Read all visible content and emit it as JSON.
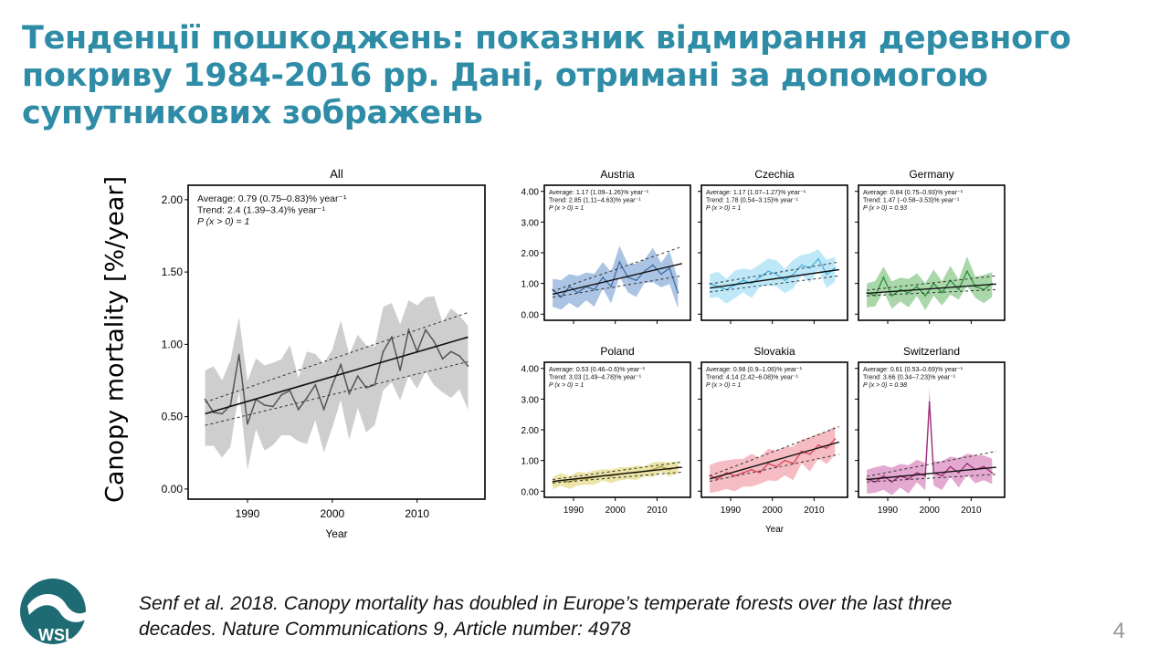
{
  "slide": {
    "title": "Тенденції пошкоджень: показник відмирання деревного покриву 1984-2016 рр. Дані, отримані за допомогою супутникових зображень",
    "ylabel": "Canopy mortality [%/year]",
    "citation_line1": "Senf et al. 2018. Canopy mortality has doubled in Europe’s temperate forests over the last three",
    "citation_line2": "decades. Nature Communications 9, Article number: 4978",
    "slide_number": "4",
    "logo_text": "WSL",
    "title_color": "#2e8ca6"
  },
  "chart_data": [
    {
      "type": "line",
      "title": "All",
      "color": "#555555",
      "band_color": "#bdbdbd",
      "xlabel": "Year",
      "ylabel": "",
      "xlim": [
        1983,
        2018
      ],
      "ylim": [
        -0.07,
        2.1
      ],
      "xticks": [
        1990,
        2000,
        2010
      ],
      "yticks": [
        "0.00",
        "0.50",
        "1.00",
        "1.50",
        "2.00"
      ],
      "annotation": [
        "Average: 0.79 (0.75–0.83)% year⁻¹",
        "Trend: 2.4 (1.39–3.4)% year⁻¹",
        "P (x > 0) = 1"
      ],
      "x": [
        1985,
        1986,
        1987,
        1988,
        1989,
        1990,
        1991,
        1992,
        1993,
        1994,
        1995,
        1996,
        1997,
        1998,
        1999,
        2000,
        2001,
        2002,
        2003,
        2004,
        2005,
        2006,
        2007,
        2008,
        2009,
        2010,
        2011,
        2012,
        2013,
        2014,
        2015,
        2016
      ],
      "values": [
        0.62,
        0.53,
        0.52,
        0.58,
        0.93,
        0.45,
        0.62,
        0.58,
        0.57,
        0.65,
        0.68,
        0.55,
        0.63,
        0.72,
        0.55,
        0.72,
        0.86,
        0.66,
        0.78,
        0.7,
        0.72,
        0.95,
        1.05,
        0.82,
        1.1,
        0.95,
        1.1,
        1.02,
        0.9,
        0.95,
        0.92,
        0.85
      ],
      "band_width": 0.2,
      "trend": {
        "x": [
          1985,
          2016
        ],
        "y": [
          0.52,
          1.05
        ]
      },
      "ci_lower": {
        "x": [
          1985,
          2016
        ],
        "y": [
          0.44,
          0.88
        ]
      },
      "ci_upper": {
        "x": [
          1985,
          2016
        ],
        "y": [
          0.6,
          1.22
        ]
      }
    },
    {
      "type": "line",
      "title": "Austria",
      "color": "#3f6fa8",
      "band_color": "#8fb0d9",
      "xlabel": "",
      "ylabel": "",
      "xlim": [
        1983,
        2018
      ],
      "ylim": [
        -0.2,
        4.2
      ],
      "xticks": [
        1990,
        2000,
        2010
      ],
      "yticks": [
        "0.00",
        "1.00",
        "2.00",
        "3.00",
        "4.00"
      ],
      "annotation": [
        "Average: 1.17 (1.09–1.26)% year⁻¹",
        "Trend: 2.85 (1.11–4.63)% year⁻¹",
        "P (x > 0) = 1"
      ],
      "x": [
        1985,
        1987,
        1989,
        1991,
        1993,
        1995,
        1997,
        1999,
        2001,
        2003,
        2005,
        2007,
        2009,
        2011,
        2013,
        2015
      ],
      "values": [
        0.8,
        0.55,
        0.9,
        0.7,
        0.9,
        0.8,
        1.2,
        0.9,
        1.7,
        1.2,
        1.1,
        1.4,
        1.6,
        1.3,
        1.5,
        0.7
      ],
      "band_width": 0.35,
      "trend": {
        "x": [
          1985,
          2016
        ],
        "y": [
          0.65,
          1.65
        ]
      },
      "ci_lower": {
        "x": [
          1985,
          2016
        ],
        "y": [
          0.55,
          1.25
        ]
      },
      "ci_upper": {
        "x": [
          1985,
          2016
        ],
        "y": [
          0.75,
          2.2
        ]
      }
    },
    {
      "type": "line",
      "title": "Czechia",
      "color": "#4ab4df",
      "band_color": "#a8e0f5",
      "xlabel": "",
      "ylabel": "",
      "xlim": [
        1983,
        2018
      ],
      "ylim": [
        -0.2,
        4.2
      ],
      "xticks": [
        1990,
        2000,
        2010
      ],
      "yticks": [
        "0.00",
        "1.00",
        "2.00",
        "3.00",
        "4.00"
      ],
      "annotation": [
        "Average: 1.17 (1.07–1.27)% year⁻¹",
        "Trend: 1.78 (0.54–3.15)% year⁻¹",
        "P (x > 0) = 1"
      ],
      "x": [
        1985,
        1987,
        1989,
        1991,
        1993,
        1995,
        1997,
        1999,
        2001,
        2003,
        2005,
        2007,
        2009,
        2011,
        2013,
        2015
      ],
      "values": [
        1.0,
        0.9,
        0.8,
        0.95,
        1.1,
        1.0,
        1.2,
        1.4,
        1.3,
        1.1,
        1.3,
        1.6,
        1.5,
        1.8,
        1.3,
        1.5
      ],
      "band_width": 0.3,
      "trend": {
        "x": [
          1985,
          2016
        ],
        "y": [
          0.85,
          1.45
        ]
      },
      "ci_lower": {
        "x": [
          1985,
          2016
        ],
        "y": [
          0.72,
          1.25
        ]
      },
      "ci_upper": {
        "x": [
          1985,
          2016
        ],
        "y": [
          0.98,
          1.7
        ]
      }
    },
    {
      "type": "line",
      "title": "Germany",
      "color": "#2f8f3a",
      "band_color": "#8cc98e",
      "xlabel": "",
      "ylabel": "",
      "xlim": [
        1983,
        2018
      ],
      "ylim": [
        -0.2,
        4.2
      ],
      "xticks": [
        1990,
        2000,
        2010
      ],
      "yticks": [
        "0.00",
        "1.00",
        "2.00",
        "3.00",
        "4.00"
      ],
      "annotation": [
        "Average: 0.84 (0.75–0.93)% year⁻¹",
        "Trend: 1.47 (−0.58–3.53)% year⁻¹",
        "P (x > 0) = 0.93"
      ],
      "x": [
        1985,
        1987,
        1989,
        1991,
        1993,
        1995,
        1997,
        1999,
        2001,
        2003,
        2005,
        2007,
        2009,
        2011,
        2013,
        2015
      ],
      "values": [
        0.7,
        0.6,
        1.2,
        0.6,
        0.8,
        0.7,
        0.9,
        0.6,
        1.0,
        0.7,
        1.1,
        0.8,
        1.4,
        0.9,
        0.8,
        1.0
      ],
      "band_width": 0.3,
      "trend": {
        "x": [
          1985,
          2016
        ],
        "y": [
          0.68,
          0.98
        ]
      },
      "ci_lower": {
        "x": [
          1985,
          2016
        ],
        "y": [
          0.6,
          0.8
        ]
      },
      "ci_upper": {
        "x": [
          1985,
          2016
        ],
        "y": [
          0.78,
          1.25
        ]
      }
    },
    {
      "type": "line",
      "title": "Poland",
      "color": "#a89a3a",
      "band_color": "#e6dc8a",
      "xlabel": "",
      "ylabel": "",
      "xlim": [
        1983,
        2018
      ],
      "ylim": [
        -0.2,
        4.2
      ],
      "xticks": [
        1990,
        2000,
        2010
      ],
      "yticks": [
        "0.00",
        "1.00",
        "2.00",
        "3.00",
        "4.00"
      ],
      "annotation": [
        "Average: 0.53 (0.46–0.6)% year⁻¹",
        "Trend: 3.03 (1.49–4.78)% year⁻¹",
        "P (x > 0) = 1"
      ],
      "x": [
        1985,
        1987,
        1989,
        1991,
        1993,
        1995,
        1997,
        1999,
        2001,
        2003,
        2005,
        2007,
        2009,
        2011,
        2013,
        2015
      ],
      "values": [
        0.3,
        0.35,
        0.3,
        0.4,
        0.4,
        0.45,
        0.5,
        0.5,
        0.55,
        0.6,
        0.6,
        0.65,
        0.7,
        0.8,
        0.7,
        0.8
      ],
      "band_width": 0.15,
      "trend": {
        "x": [
          1985,
          2016
        ],
        "y": [
          0.32,
          0.78
        ]
      },
      "ci_lower": {
        "x": [
          1985,
          2016
        ],
        "y": [
          0.27,
          0.62
        ]
      },
      "ci_upper": {
        "x": [
          1985,
          2016
        ],
        "y": [
          0.38,
          0.95
        ]
      }
    },
    {
      "type": "line",
      "title": "Slovakia",
      "color": "#d9475a",
      "band_color": "#f2a6b0",
      "xlabel": "Year",
      "ylabel": "",
      "xlim": [
        1983,
        2018
      ],
      "ylim": [
        -0.2,
        4.2
      ],
      "xticks": [
        1990,
        2000,
        2010
      ],
      "yticks": [
        "0.00",
        "1.00",
        "2.00",
        "3.00",
        "4.00"
      ],
      "annotation": [
        "Average: 0.98 (0.9–1.06)% year⁻¹",
        "Trend: 4.14 (2.42–6.08)% year⁻¹",
        "P (x > 0) = 1"
      ],
      "x": [
        1985,
        1987,
        1989,
        1991,
        1993,
        1995,
        1997,
        1999,
        2001,
        2003,
        2005,
        2007,
        2009,
        2011,
        2013,
        2015
      ],
      "values": [
        0.5,
        0.4,
        0.6,
        0.5,
        0.6,
        0.7,
        0.6,
        0.9,
        0.8,
        1.0,
        0.9,
        1.3,
        1.2,
        1.5,
        1.4,
        1.7
      ],
      "band_width": 0.35,
      "trend": {
        "x": [
          1985,
          2016
        ],
        "y": [
          0.4,
          1.6
        ]
      },
      "ci_lower": {
        "x": [
          1985,
          2016
        ],
        "y": [
          0.32,
          1.2
        ]
      },
      "ci_upper": {
        "x": [
          1985,
          2016
        ],
        "y": [
          0.5,
          2.1
        ]
      }
    },
    {
      "type": "line",
      "title": "Switzerland",
      "color": "#9c2f78",
      "band_color": "#d98cc0",
      "xlabel": "",
      "ylabel": "",
      "xlim": [
        1983,
        2018
      ],
      "ylim": [
        -0.2,
        4.2
      ],
      "xticks": [
        1990,
        2000,
        2010
      ],
      "yticks": [
        "0.00",
        "1.00",
        "2.00",
        "3.00",
        "4.00"
      ],
      "annotation": [
        "Average: 0.61 (0.53–0.69)% year⁻¹",
        "Trend: 3.66 (0.34–7.23)% year⁻¹",
        "P (x > 0) = 0.98"
      ],
      "x": [
        1985,
        1987,
        1989,
        1991,
        1993,
        1995,
        1997,
        1999,
        2000,
        2001,
        2003,
        2005,
        2007,
        2009,
        2011,
        2013,
        2015
      ],
      "values": [
        0.4,
        0.3,
        0.5,
        0.3,
        0.5,
        0.4,
        0.6,
        0.5,
        2.9,
        0.6,
        0.5,
        0.8,
        0.6,
        0.9,
        0.7,
        0.8,
        0.6
      ],
      "band_width": 0.3,
      "trend": {
        "x": [
          1985,
          2016
        ],
        "y": [
          0.38,
          0.78
        ]
      },
      "ci_lower": {
        "x": [
          1985,
          2016
        ],
        "y": [
          0.3,
          0.55
        ]
      },
      "ci_upper": {
        "x": [
          1985,
          2016
        ],
        "y": [
          0.48,
          1.3
        ]
      }
    }
  ]
}
